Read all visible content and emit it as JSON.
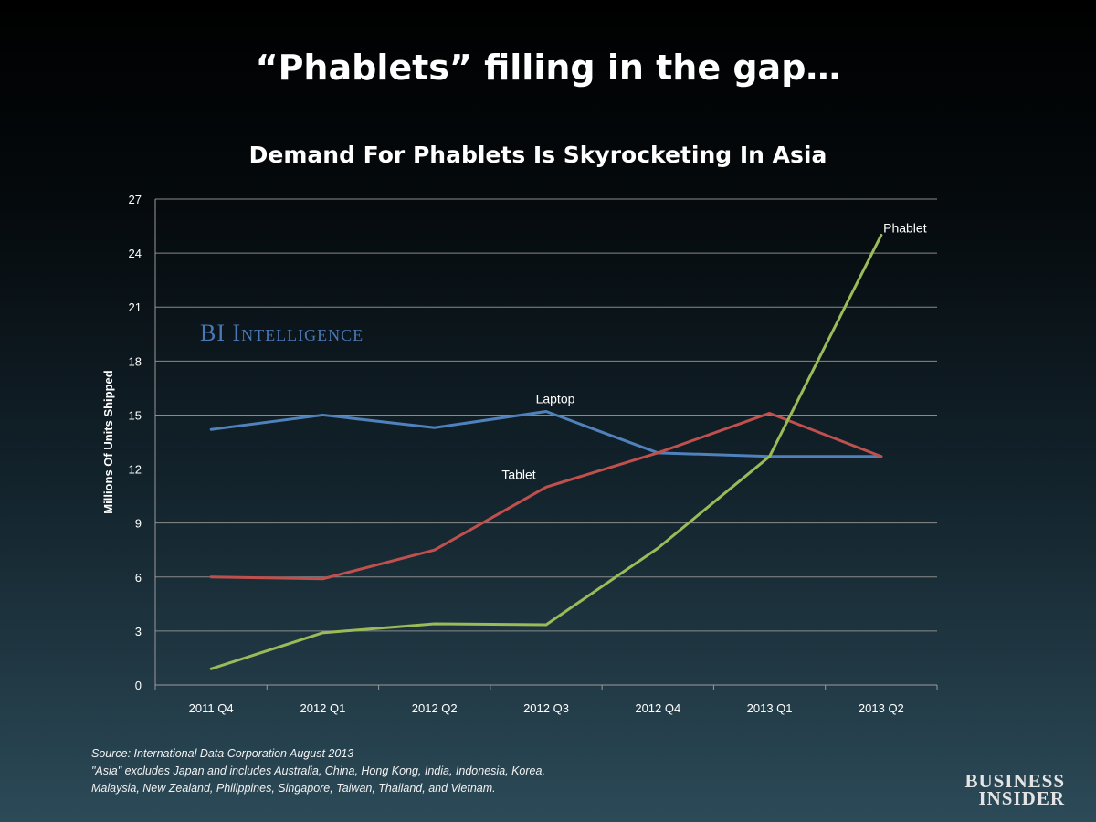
{
  "slide": {
    "title": "“Phablets” filling in the gap…"
  },
  "chart_data": {
    "type": "line",
    "title": "Demand For Phablets Is Skyrocketing In Asia",
    "xlabel": "",
    "ylabel": "Millions Of Units Shipped",
    "categories": [
      "2011 Q4",
      "2012 Q1",
      "2012 Q2",
      "2012 Q3",
      "2012 Q4",
      "2013 Q1",
      "2013 Q2"
    ],
    "ylim": [
      0,
      27
    ],
    "yticks": [
      0,
      3,
      6,
      9,
      12,
      15,
      18,
      21,
      24,
      27
    ],
    "grid": true,
    "series": [
      {
        "name": "Laptop",
        "color": "#4f81bd",
        "values": [
          14.2,
          15.0,
          14.3,
          15.2,
          12.9,
          12.7,
          12.7
        ]
      },
      {
        "name": "Tablet",
        "color": "#c0504d",
        "values": [
          6.0,
          5.9,
          7.5,
          11.0,
          12.9,
          15.1,
          12.7
        ]
      },
      {
        "name": "Phablet",
        "color": "#9bbb59",
        "values": [
          0.9,
          2.9,
          3.4,
          3.35,
          7.6,
          12.7,
          25.0
        ]
      }
    ],
    "annotations": [
      {
        "text": "Laptop",
        "series": "Laptop",
        "category": "2012 Q3"
      },
      {
        "text": "Tablet",
        "series": "Tablet",
        "category": "2012 Q3"
      },
      {
        "text": "Phablet",
        "series": "Phablet",
        "category": "2013 Q2"
      }
    ]
  },
  "watermark": "BI Intelligence",
  "source": {
    "lines": [
      "Source: International Data Corporation August 2013",
      "\"Asia\" excludes Japan and includes Australia, China, Hong Kong, India, Indonesia, Korea,",
      "Malaysia, New Zealand, Philippines, Singapore, Taiwan, Thailand, and Vietnam."
    ]
  },
  "brand": {
    "line1": "Business",
    "line2": "Insider"
  },
  "colors": {
    "background_top": "#000000",
    "background_bottom": "#2c4a58",
    "watermark": "#4a78b4",
    "gridline": "#8a8a8a"
  }
}
